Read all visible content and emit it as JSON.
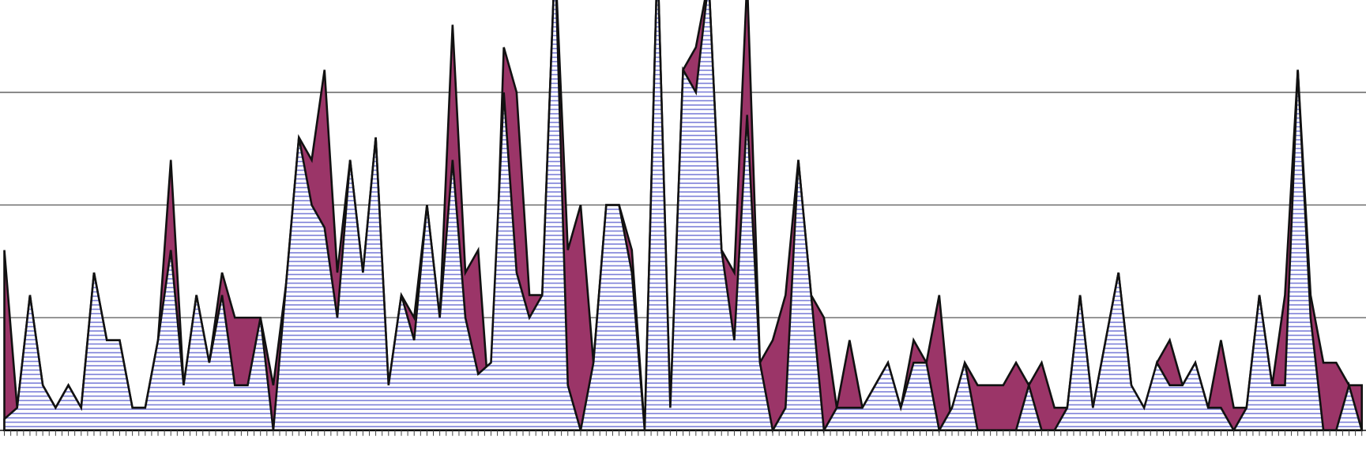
{
  "chart_data": {
    "type": "area",
    "grid": true,
    "categories": [
      null,
      null,
      null,
      null,
      null,
      null,
      null,
      null,
      null,
      null,
      null,
      null,
      null,
      null,
      null,
      null,
      null,
      null,
      null,
      null,
      null,
      null,
      null,
      null,
      null,
      null,
      null,
      null,
      null,
      null,
      null,
      null,
      null,
      null,
      null,
      null,
      null,
      null,
      null,
      null,
      null,
      null,
      null,
      null,
      null,
      null,
      null,
      null,
      null,
      null,
      null,
      null,
      null,
      null,
      null,
      null,
      null,
      null,
      null,
      null,
      null,
      null,
      null,
      null,
      null,
      null,
      null,
      null,
      null,
      null,
      null,
      null,
      null,
      null,
      null,
      null,
      null,
      null,
      null,
      null,
      null,
      null,
      null,
      null,
      null,
      null,
      null,
      null,
      null,
      null,
      null,
      null,
      null,
      null,
      null,
      null,
      null,
      null,
      null,
      null,
      null,
      null,
      null,
      null,
      null,
      null,
      null
    ],
    "ylim": [
      0,
      38.2
    ],
    "yticks": [
      10,
      20,
      30
    ],
    "series": [
      {
        "color": "#9b3568",
        "fill": "solid",
        "values": [
          16,
          2,
          12,
          4,
          2,
          4,
          2,
          14,
          8,
          8,
          2,
          2,
          8,
          24,
          4,
          12,
          6,
          14,
          10,
          10,
          10,
          4,
          13,
          26,
          24,
          32,
          14,
          24,
          14,
          26,
          4,
          12,
          10,
          20,
          10,
          36,
          14,
          16,
          0,
          34,
          30,
          12,
          12,
          42,
          16,
          20,
          6,
          20,
          20,
          16,
          0,
          42,
          2,
          32,
          34,
          40,
          16,
          14,
          40,
          6,
          8,
          12,
          24,
          12,
          10,
          2,
          8,
          2,
          4,
          6,
          2,
          8,
          6,
          12,
          0,
          6,
          4,
          4,
          4,
          6,
          4,
          6,
          2,
          2,
          12,
          2,
          8,
          14,
          4,
          0,
          6,
          8,
          4,
          6,
          2,
          8,
          2,
          2,
          12,
          4,
          12,
          32,
          12,
          6,
          6,
          4,
          4
        ]
      },
      {
        "color": "#7b7fd8",
        "fill": "hatch",
        "values": [
          1,
          2,
          12,
          4,
          2,
          4,
          2,
          14,
          8,
          8,
          2,
          2,
          8,
          16,
          4,
          12,
          6,
          12,
          4,
          4,
          10,
          0,
          13,
          26,
          20,
          18,
          10,
          24,
          14,
          26,
          4,
          12,
          8,
          20,
          10,
          24,
          10,
          5,
          6,
          30,
          14,
          10,
          12,
          42,
          4,
          0,
          6,
          20,
          20,
          14,
          0,
          42,
          2,
          32,
          30,
          40,
          16,
          8,
          28,
          6,
          0,
          2,
          24,
          12,
          0,
          2,
          2,
          2,
          4,
          6,
          2,
          6,
          6,
          0,
          2,
          6,
          0,
          0,
          0,
          0,
          4,
          0,
          0,
          2,
          12,
          2,
          8,
          14,
          4,
          2,
          6,
          4,
          4,
          6,
          2,
          2,
          0,
          2,
          12,
          4,
          4,
          32,
          10,
          0,
          0,
          4,
          0
        ]
      }
    ]
  }
}
